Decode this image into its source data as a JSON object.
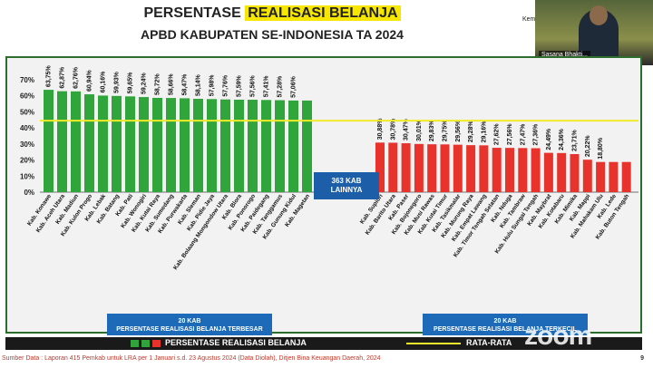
{
  "header": {
    "title_prefix": "PERSENTASE ",
    "title_highlight": "REALISASI BELANJA",
    "subtitle": "APBD KABUPATEN SE-INDONESIA TA 2024",
    "kem_label": "Kem"
  },
  "video": {
    "name": "Sasana Bhakti..."
  },
  "middle_box": {
    "line1": "363 KAB",
    "line2": "LAINNYA"
  },
  "caption_left": {
    "line1": "20 KAB",
    "line2": "PERSENTASE REALISASI BELANJA TERBESAR"
  },
  "caption_right": {
    "line1": "20 KAB",
    "line2": "PERSENTASE REALISASI BELANJA TERKECIL"
  },
  "legend": {
    "series_label": "PERSENTASE REALISASI BELANJA",
    "avg_label": "RATA-RATA"
  },
  "footer": {
    "source": "Sumber Data : Laporan 415 Pemkab untuk LRA per 1 Januari s.d. 23 Agustus 2024 (Data Diolah), Ditjen Bina Keuangan Daerah, 2024",
    "page": "9"
  },
  "colors": {
    "top": "#2fa53b",
    "bottom": "#e8332d",
    "avg": "#f1ea2a",
    "box": "#1d5ea8"
  },
  "chart_data": {
    "type": "bar",
    "title": "PERSENTASE REALISASI BELANJA APBD KABUPATEN SE-INDONESIA TA 2024",
    "ylim": [
      0,
      70
    ],
    "yticks": [
      "0%",
      "10%",
      "20%",
      "30%",
      "40%",
      "50%",
      "60%",
      "70%"
    ],
    "average": 44.5,
    "series": [
      {
        "name": "PERSENTASE REALISASI BELANJA",
        "group": "top20",
        "categories": [
          "Kab. Konawe",
          "Kab. Aceh Utara",
          "Kab. Madiun",
          "Kab. Kulon Progo",
          "Kab. Lebak",
          "Kab. Batang",
          "Kab. Pati",
          "Kab. Wonogiri",
          "Kab. Kutai Raya",
          "Kab. Sumedang",
          "Kab. Purwakarta",
          "Kab. Sleman",
          "Kab. Pidie Jaya",
          "Kab. Bolaang Mongondow Utara",
          "Kab. Blora",
          "Kab. Ponorogo",
          "Kab. Paidegang",
          "Kab. Tanggamus",
          "Kab. Gunung Kidul",
          "Kab. Magetan"
        ],
        "values": [
          63.75,
          62.87,
          62.76,
          60.94,
          60.16,
          59.93,
          59.65,
          59.24,
          58.72,
          58.66,
          58.47,
          58.14,
          57.98,
          57.76,
          57.59,
          57.56,
          57.41,
          57.28,
          57.06,
          57.06
        ],
        "labels": [
          "63,75%",
          "62,87%",
          "62,76%",
          "60,94%",
          "60,16%",
          "59,93%",
          "59,65%",
          "59,24%",
          "58,72%",
          "58,66%",
          "58,47%",
          "58,14%",
          "57,98%",
          "57,76%",
          "57,59%",
          "57,56%",
          "57,41%",
          "57,28%",
          "57,06%",
          ""
        ]
      },
      {
        "name": "PERSENTASE REALISASI BELANJA",
        "group": "bottom20",
        "categories": [
          "Kab. Supiori",
          "Kab. Barito Utara",
          "Kab. Paser",
          "Kab. Bojonegoro",
          "Kab. Musi Rawas",
          "Kab. Kutai Timur",
          "Kab. Tasikmalar",
          "Kab. Murung Raya",
          "Kab. Empat Lawang",
          "Kab. Timor Tengah Selatan",
          "Kab. Nduga",
          "Kab. Tambraw",
          "Kab. Hulu Sungai Tengah",
          "Kab. Maybrat",
          "Kab. Kotabaru",
          "Kab. Mimika",
          "Kab. Mappi",
          "Kab. Mahakam Ulu",
          "Kab. Lede",
          "Kab. Buton Tengah"
        ],
        "values": [
          30.88,
          30.78,
          30.47,
          30.01,
          29.83,
          29.75,
          29.56,
          29.28,
          29.16,
          27.62,
          27.56,
          27.47,
          27.36,
          24.49,
          24.36,
          23.71,
          20.22,
          18.8,
          18.8,
          18.8
        ],
        "labels": [
          "30,88%",
          "30,78%",
          "30,47%",
          "30,01%",
          "29,83%",
          "29,75%",
          "29,56%",
          "29,28%",
          "29,16%",
          "27,62%",
          "27,56%",
          "27,47%",
          "27,36%",
          "24,49%",
          "24,36%",
          "23,71%",
          "20,22%",
          "18,80%",
          "",
          ""
        ]
      }
    ]
  }
}
